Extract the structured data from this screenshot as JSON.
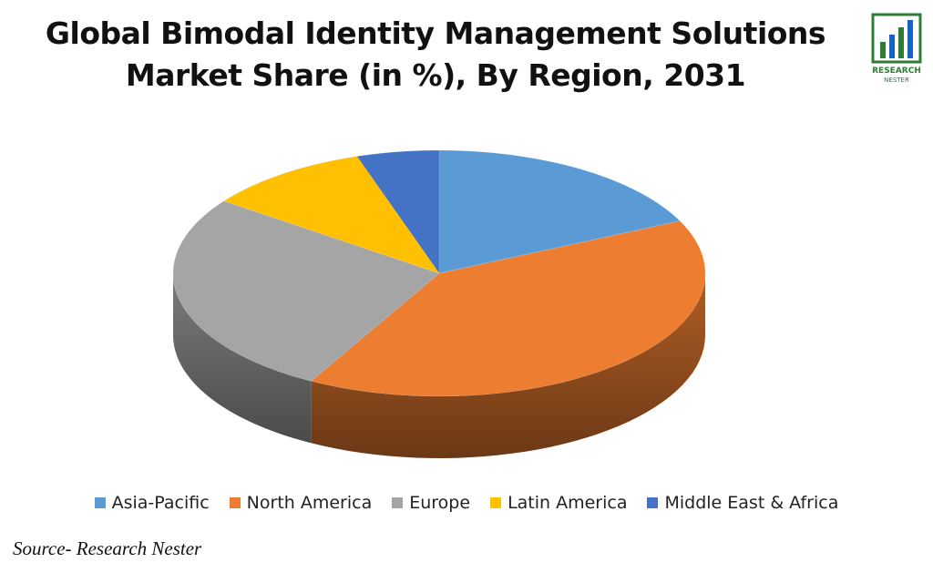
{
  "chart_data": {
    "type": "pie3d",
    "title": "Global Bimodal Identity Management Solutions Market Share (in %), By Region, 2031",
    "categories": [
      "Asia-Pacific",
      "North America",
      "Europe",
      "Latin America",
      "Middle East & Africa"
    ],
    "values": [
      18,
      40,
      27,
      10,
      5
    ],
    "colors": [
      "#5b9bd5",
      "#ed7d31",
      "#a5a5a5",
      "#ffc000",
      "#4472c4"
    ],
    "source": "Source- Research Nester",
    "logo": {
      "line1": "RESEARCH",
      "line2": "NESTER"
    }
  }
}
